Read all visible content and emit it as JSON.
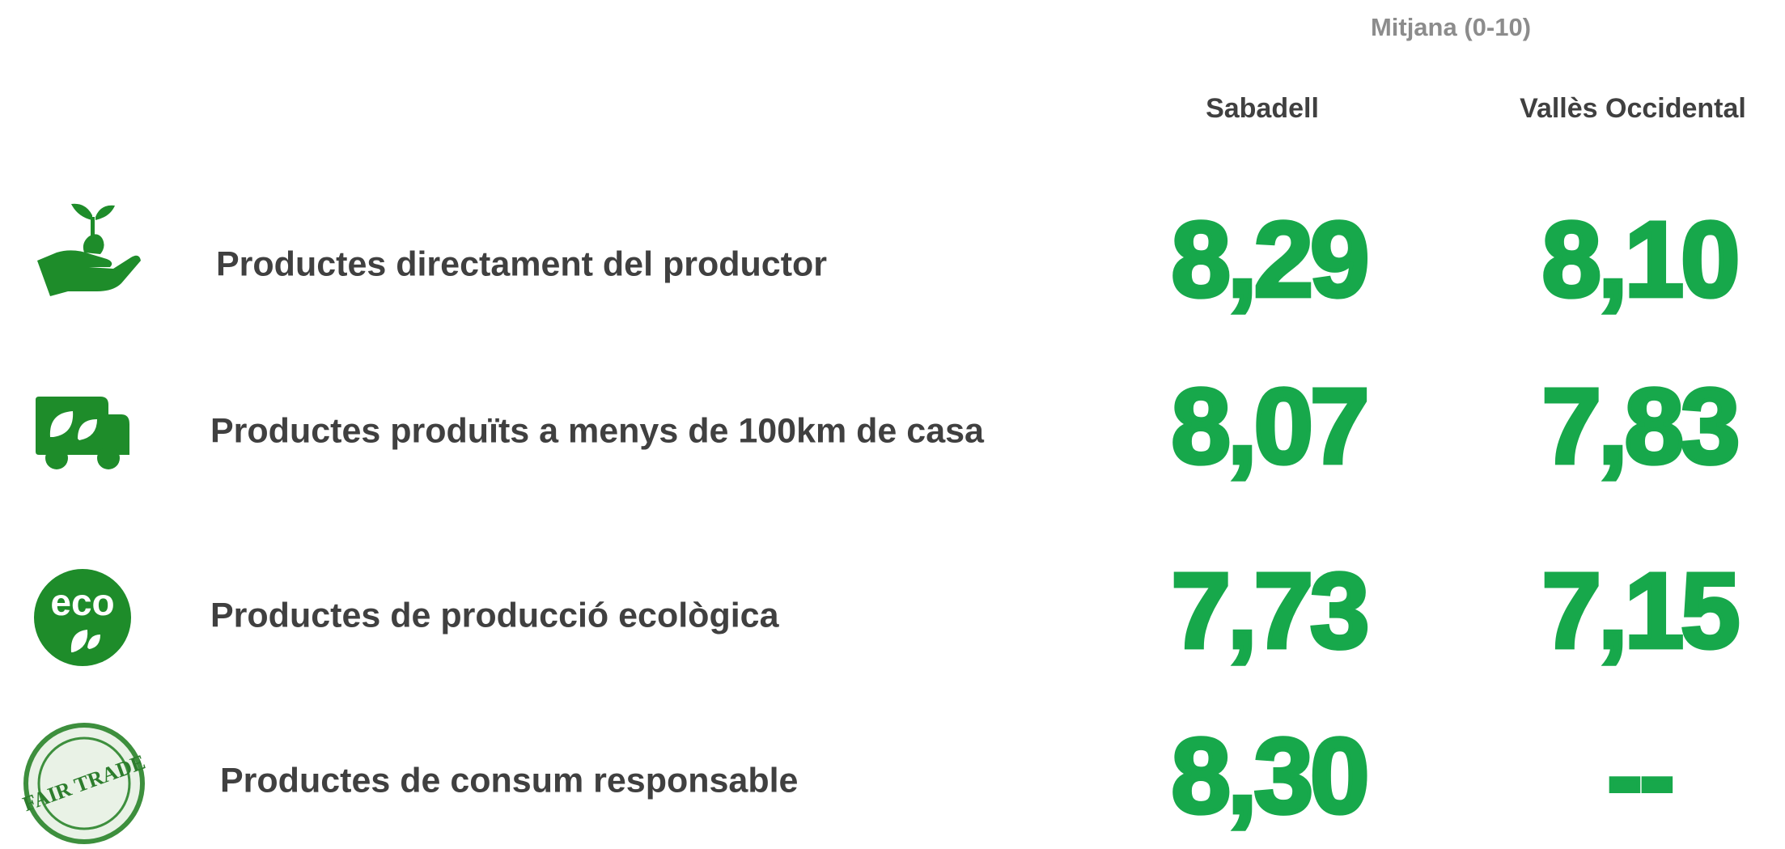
{
  "header": {
    "title": "Mitjana (0-10)",
    "columns": [
      "Sabadell",
      "Vallès Occidental"
    ]
  },
  "rows": [
    {
      "label": "Productes directament del productor",
      "values": [
        "8,29",
        "8,10"
      ]
    },
    {
      "label": "Productes produïts a menys de 100km de casa",
      "values": [
        "8,07",
        "7,83"
      ]
    },
    {
      "label": "Productes de producció ecològica",
      "values": [
        "7,73",
        "7,15"
      ],
      "icon_text": "eco"
    },
    {
      "label": "Productes de consum responsable",
      "values": [
        "8,30",
        "--"
      ],
      "icon_text": "FAIR TRADE"
    }
  ]
}
